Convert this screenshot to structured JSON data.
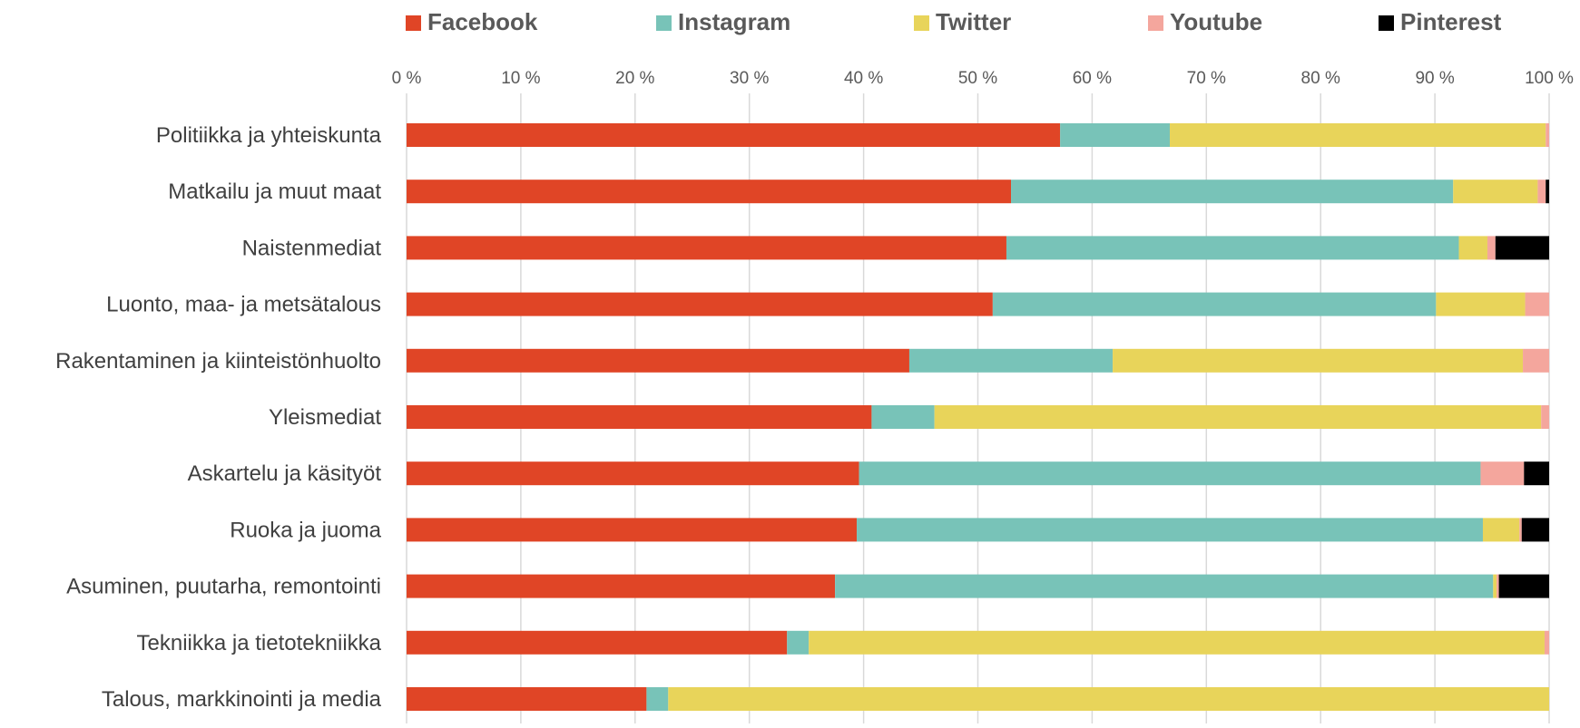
{
  "chart_data": {
    "type": "bar",
    "orientation": "horizontal",
    "stacked": "percent",
    "title": "",
    "xlabel": "",
    "ylabel": "",
    "xlim": [
      0,
      100
    ],
    "grid": true,
    "legend_position": "top",
    "x_ticks": [
      "0 %",
      "10 %",
      "20 %",
      "30 %",
      "40 %",
      "50 %",
      "60 %",
      "70 %",
      "80 %",
      "90 %",
      "100 %"
    ],
    "categories": [
      "Politiikka ja yhteiskunta",
      "Matkailu ja muut maat",
      "Naistenmediat",
      "Luonto, maa- ja metsätalous",
      "Rakentaminen ja kiinteistönhuolto",
      "Yleismediat",
      "Askartelu ja käsityöt",
      "Ruoka ja juoma",
      "Asuminen, puutarha, remontointi",
      "Tekniikka ja tietotekniikka",
      "Talous, markkinointi ja media"
    ],
    "series": [
      {
        "name": "Facebook",
        "color": "#E04526",
        "values": [
          57.2,
          52.9,
          52.5,
          51.3,
          44.0,
          40.7,
          39.6,
          39.4,
          37.5,
          33.3,
          21.0
        ]
      },
      {
        "name": "Instagram",
        "color": "#78C3B8",
        "values": [
          9.6,
          38.7,
          39.6,
          38.8,
          17.8,
          5.5,
          54.4,
          54.8,
          57.6,
          1.9,
          1.9
        ]
      },
      {
        "name": "Twitter",
        "color": "#E8D45A",
        "values": [
          32.9,
          7.4,
          2.5,
          7.8,
          35.9,
          53.1,
          0.0,
          3.2,
          0.3,
          64.4,
          77.1
        ]
      },
      {
        "name": "Youtube",
        "color": "#F4A69D",
        "values": [
          0.3,
          0.7,
          0.7,
          2.1,
          2.3,
          0.7,
          3.8,
          0.2,
          0.2,
          0.4,
          0.0
        ]
      },
      {
        "name": "Pinterest",
        "color": "#000000",
        "values": [
          0.0,
          0.3,
          4.7,
          0.0,
          0.0,
          0.0,
          2.2,
          2.4,
          4.4,
          0.0,
          0.0
        ]
      }
    ]
  }
}
